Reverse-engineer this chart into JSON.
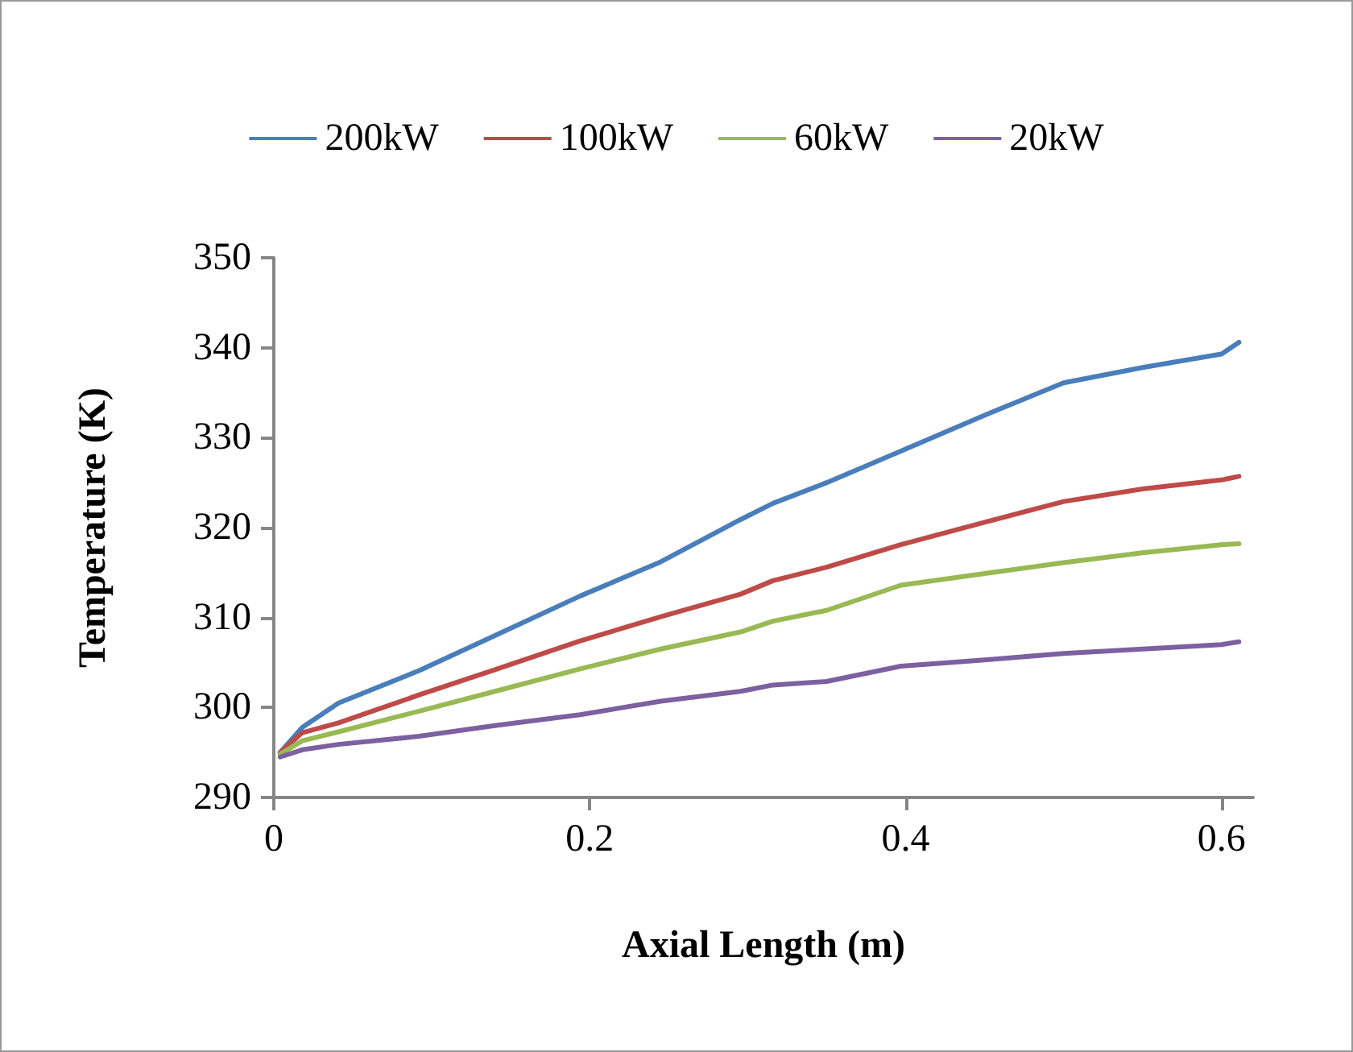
{
  "chart_data": {
    "type": "line",
    "xlabel": "Axial Length (m)",
    "ylabel": "Temperature (K)",
    "x": [
      0.004,
      0.018,
      0.041,
      0.092,
      0.14,
      0.194,
      0.245,
      0.2955,
      0.316,
      0.35,
      0.397,
      0.45,
      0.5,
      0.55,
      0.6,
      0.611
    ],
    "series": [
      {
        "name": "200kW",
        "color": "#4a7ebb",
        "values": [
          295,
          297.8,
          300.5,
          304.1,
          308,
          312.4,
          316.2,
          320.9,
          322.7,
          325,
          328.5,
          332.5,
          336.1,
          337.8,
          339.3,
          340.6
        ]
      },
      {
        "name": "100kW",
        "color": "#be4b48",
        "values": [
          295,
          297.2,
          298.3,
          301.4,
          304.2,
          307.4,
          310.1,
          312.6,
          314.1,
          315.6,
          318.1,
          320.6,
          322.9,
          324.3,
          325.3,
          325.7
        ]
      },
      {
        "name": "60kW",
        "color": "#98b954",
        "values": [
          294.8,
          296.3,
          297.3,
          299.6,
          301.8,
          304.3,
          306.5,
          308.4,
          309.6,
          310.8,
          313.6,
          314.9,
          316.1,
          317.2,
          318.1,
          318.2
        ]
      },
      {
        "name": "20kW",
        "color": "#7d60a0",
        "values": [
          294.5,
          295.3,
          295.9,
          296.8,
          298,
          299.2,
          300.7,
          301.8,
          302.5,
          302.9,
          304.6,
          305.3,
          306,
          306.5,
          307,
          307.3
        ]
      }
    ],
    "xlim": [
      0,
      0.62
    ],
    "xticks": [
      0,
      0.2,
      0.4,
      0.6
    ],
    "ylim": [
      290,
      350
    ],
    "yticks": [
      290,
      300,
      310,
      320,
      330,
      340,
      350
    ],
    "grid": false,
    "legend": "top",
    "marker": "none",
    "line_style": "solid"
  }
}
